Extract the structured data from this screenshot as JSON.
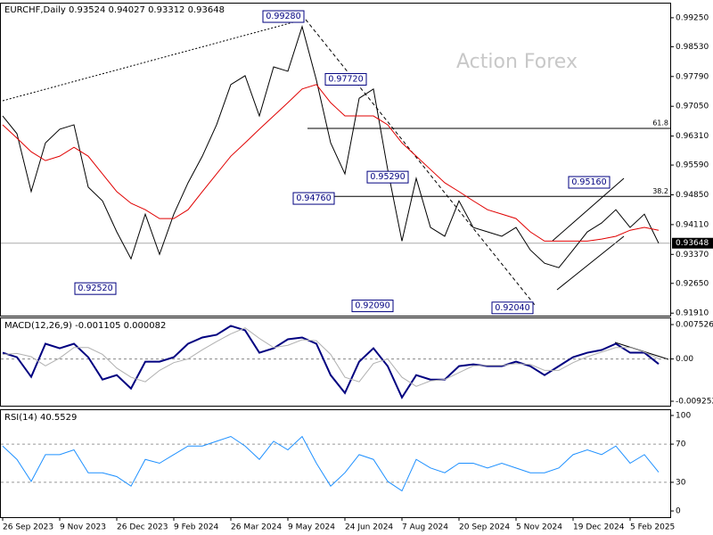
{
  "chart_data": [
    {
      "type": "line",
      "title": "EURCHF,Daily  0.93524 0.94027 0.93312 0.93648",
      "watermark": "Action Forex",
      "categories": [
        "26 Sep 2023",
        null,
        null,
        null,
        "9 Nov 2023",
        null,
        null,
        null,
        "26 Dec 2023",
        null,
        null,
        null,
        "9 Feb 2024",
        null,
        null,
        null,
        "26 Mar 2024",
        null,
        null,
        null,
        "9 May 2024",
        null,
        null,
        null,
        "24 Jun 2024",
        null,
        null,
        null,
        "7 Aug 2024",
        null,
        null,
        null,
        "20 Sep 2024",
        null,
        null,
        null,
        "5 Nov 2024",
        null,
        null,
        null,
        "19 Dec 2024",
        null,
        null,
        null,
        "5 Feb 2025",
        null,
        null
      ],
      "series": [
        {
          "color": "#000000",
          "values": [
            0.9681,
            0.9637,
            0.9493,
            0.9614,
            0.9648,
            0.9659,
            0.9504,
            0.947,
            0.9393,
            0.9326,
            0.9437,
            0.9337,
            0.9437,
            0.9515,
            0.9581,
            0.9659,
            0.9759,
            0.9781,
            0.9681,
            0.9803,
            0.9792,
            0.9903,
            0.977,
            0.9614,
            0.9537,
            0.9725,
            0.9748,
            0.9548,
            0.937,
            0.9526,
            0.9404,
            0.9382,
            0.947,
            0.9404,
            0.9393,
            0.9382,
            0.9404,
            0.9348,
            0.9315,
            0.9304,
            0.9348,
            0.9393,
            0.9415,
            0.9448,
            0.9404,
            0.9437,
            0.93648
          ]
        },
        {
          "color": "#e00000",
          "values": [
            0.9659,
            0.9626,
            0.9592,
            0.957,
            0.9581,
            0.9603,
            0.9581,
            0.9537,
            0.9493,
            0.9464,
            0.9448,
            0.9426,
            0.9426,
            0.9448,
            0.9493,
            0.9537,
            0.9581,
            0.9614,
            0.9648,
            0.9681,
            0.9714,
            0.9748,
            0.9759,
            0.9714,
            0.9681,
            0.9681,
            0.9681,
            0.9659,
            0.9614,
            0.9581,
            0.9548,
            0.9515,
            0.9493,
            0.947,
            0.9448,
            0.9437,
            0.9426,
            0.9393,
            0.937,
            0.937,
            0.937,
            0.937,
            0.9375,
            0.9382,
            0.9397,
            0.9404,
            0.9397
          ]
        }
      ],
      "ylim": [
        0.9187,
        0.9958
      ],
      "yticks": [
        {
          "value": 0.9925,
          "label": "0.99250"
        },
        {
          "value": 0.9853,
          "label": "0.98530"
        },
        {
          "value": 0.9779,
          "label": "0.97790"
        },
        {
          "value": 0.9705,
          "label": "0.97050"
        },
        {
          "value": 0.9631,
          "label": "0.96310"
        },
        {
          "value": 0.9559,
          "label": "0.95590"
        },
        {
          "value": 0.9485,
          "label": "0.94850"
        },
        {
          "value": 0.9411,
          "label": "0.94110"
        },
        {
          "value": 0.9337,
          "label": "0.93370"
        },
        {
          "value": 0.9265,
          "label": "0.92650"
        },
        {
          "value": 0.9191,
          "label": "0.91910"
        }
      ],
      "last_price": 0.93648,
      "annotations": [
        {
          "value": 0.9928,
          "label": "0.99280"
        },
        {
          "value": 0.9772,
          "label": "0.97720"
        },
        {
          "value": 0.9529,
          "label": "0.95290"
        },
        {
          "value": 0.9476,
          "label": "0.94760"
        },
        {
          "value": 0.9516,
          "label": "0.95160"
        },
        {
          "value": 0.9252,
          "label": "0.92520"
        },
        {
          "value": 0.9209,
          "label": "0.92090"
        },
        {
          "value": 0.9204,
          "label": "0.92040"
        }
      ],
      "fib_levels": [
        {
          "value": 0.965,
          "label": "61.8"
        },
        {
          "value": 0.9481,
          "label": "38.2"
        }
      ]
    },
    {
      "type": "line",
      "title": "MACD(12,26,9) -0.001105 0.000082",
      "series": [
        {
          "color": "#000080",
          "values": [
            0.00137,
            0.00039,
            -0.00392,
            0.00333,
            0.00235,
            0.00333,
            0.00039,
            -0.00451,
            -0.00353,
            -0.00647,
            -0.00059,
            -0.00059,
            0.00039,
            0.00333,
            0.0047,
            0.00529,
            0.00725,
            0.00627,
            0.00137,
            0.00235,
            0.00431,
            0.0047,
            0.00333,
            -0.00353,
            -0.00745,
            -0.00059,
            0.00235,
            -0.00157,
            -0.00843,
            -0.00353,
            -0.00451,
            -0.00451,
            -0.00157,
            -0.00118,
            -0.00157,
            -0.00157,
            -0.00059,
            -0.00157,
            -0.00353,
            -0.00157,
            0.00039,
            0.00137,
            0.00196,
            0.00333,
            0.00137,
            0.00137,
            -0.0011
          ]
        },
        {
          "color": "#b0b0b0",
          "values": [
            0.001,
            0.0012,
            0.0005,
            -0.0015,
            0.0002,
            0.0025,
            0.0025,
            0.001,
            -0.002,
            -0.004,
            -0.005,
            -0.0025,
            -0.0008,
            0,
            0.002,
            0.0038,
            0.0055,
            0.0068,
            0.0045,
            0.0025,
            0.003,
            0.0042,
            0.004,
            0.001,
            -0.004,
            -0.005,
            -0.001,
            0,
            -0.004,
            -0.006,
            -0.0048,
            -0.0045,
            -0.003,
            -0.0015,
            -0.0014,
            -0.0014,
            -0.001,
            -0.0012,
            -0.0025,
            -0.0025,
            -0.0008,
            0.0005,
            0.0015,
            0.0025,
            0.0025,
            0.0015,
            8e-05
          ]
        }
      ],
      "ylim": [
        -0.01023,
        0.00909
      ],
      "yticks": [
        0.007526,
        {
          "value": 0,
          "label": "0.00"
        },
        -0.009252
      ]
    },
    {
      "type": "line",
      "title": "RSI(14) 40.5529",
      "series": [
        {
          "color": "#1e90ff",
          "values": [
            68,
            54,
            31,
            59,
            59,
            64,
            40,
            40,
            36,
            26,
            54,
            50,
            59,
            68,
            68,
            73,
            78,
            68,
            54,
            73,
            64,
            78,
            50,
            26,
            40,
            59,
            54,
            31,
            21,
            54,
            45,
            40,
            50,
            50,
            45,
            50,
            45,
            40,
            40,
            45,
            59,
            64,
            59,
            68,
            50,
            59,
            40.5529
          ]
        }
      ],
      "ylim": [
        -6.5,
        106.5
      ],
      "yticks": [
        100,
        70,
        30,
        0
      ],
      "dashed_levels": [
        70,
        30
      ]
    }
  ]
}
